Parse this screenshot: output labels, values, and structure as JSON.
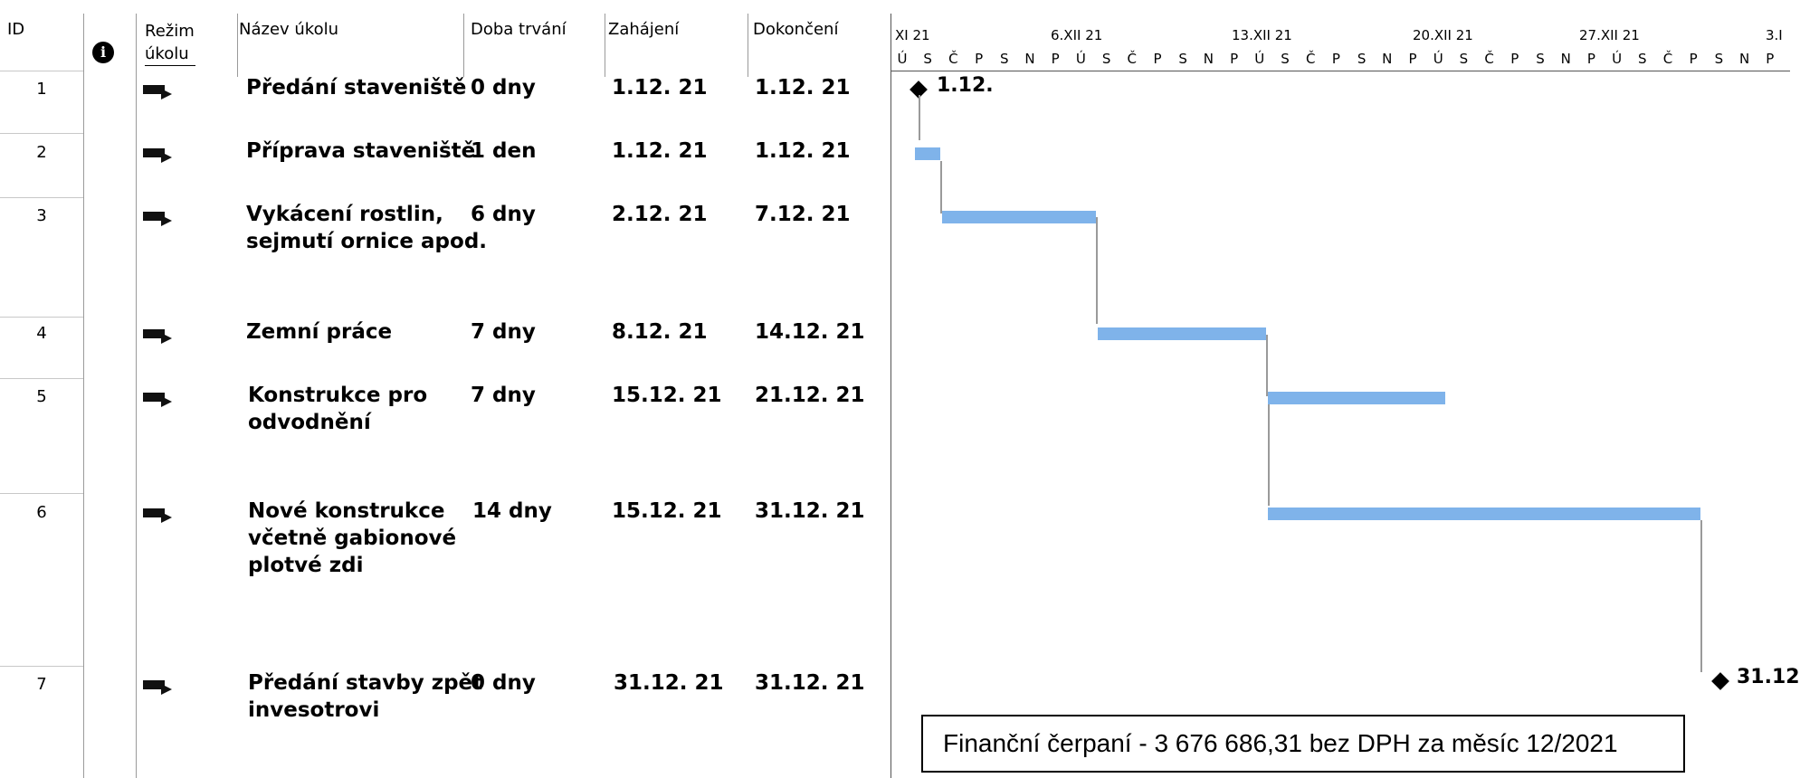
{
  "headers": {
    "id": "ID",
    "info": "i",
    "mode": "Režim úkolu",
    "mode_line1": "Režim",
    "mode_line2": "úkolu",
    "name": "Název úkolu",
    "duration": "Doba trvání",
    "start": "Zahájení",
    "finish": "Dokončení"
  },
  "tasks": [
    {
      "id": "1",
      "name_lines": [
        "Předání staveniště"
      ],
      "duration": "0 dny",
      "start": "1.12. 21",
      "finish": "1.12. 21"
    },
    {
      "id": "2",
      "name_lines": [
        "Příprava staveniště"
      ],
      "duration": "1 den",
      "start": "1.12. 21",
      "finish": "1.12. 21"
    },
    {
      "id": "3",
      "name_lines": [
        "Vykácení rostlin,",
        "sejmutí ornice apod."
      ],
      "duration": "6 dny",
      "start": "2.12. 21",
      "finish": "7.12. 21"
    },
    {
      "id": "4",
      "name_lines": [
        "Zemní práce"
      ],
      "duration": "7 dny",
      "start": "8.12. 21",
      "finish": "14.12. 21"
    },
    {
      "id": "5",
      "name_lines": [
        "Konstrukce pro",
        "odvodnění"
      ],
      "duration": "7 dny",
      "start": "15.12. 21",
      "finish": "21.12. 21"
    },
    {
      "id": "6",
      "name_lines": [
        "Nové konstrukce",
        "včetně gabionové",
        "plotvé zdi"
      ],
      "duration": "14 dny",
      "start": "15.12. 21",
      "finish": "31.12. 21"
    },
    {
      "id": "7",
      "name_lines": [
        "Předání stavby zpět",
        "invesotrovi"
      ],
      "duration": "0 dny",
      "start": "31.12. 21",
      "finish": "31.12. 21"
    }
  ],
  "timescale": {
    "weeks": [
      "XI 21",
      "6.XII 21",
      "13.XII 21",
      "20.XII 21",
      "27.XII 21",
      "3.I"
    ],
    "days": [
      "Ú",
      "S",
      "Č",
      "P",
      "S",
      "N",
      "P",
      "Ú",
      "S",
      "Č",
      "P",
      "S",
      "N",
      "P",
      "Ú",
      "S",
      "Č",
      "P",
      "S",
      "N",
      "P",
      "Ú",
      "S",
      "Č",
      "P",
      "S",
      "N",
      "P",
      "Ú",
      "S",
      "Č",
      "P",
      "S",
      "N",
      "P"
    ]
  },
  "milestones": {
    "start_label": "1.12.",
    "end_label": "31.12"
  },
  "finance_note": "Finanční čerpaní - 3 676 686,31 bez DPH za měsíc 12/2021",
  "colors": {
    "bar": "#7fb3ea",
    "grid": "#c8c8c8"
  }
}
